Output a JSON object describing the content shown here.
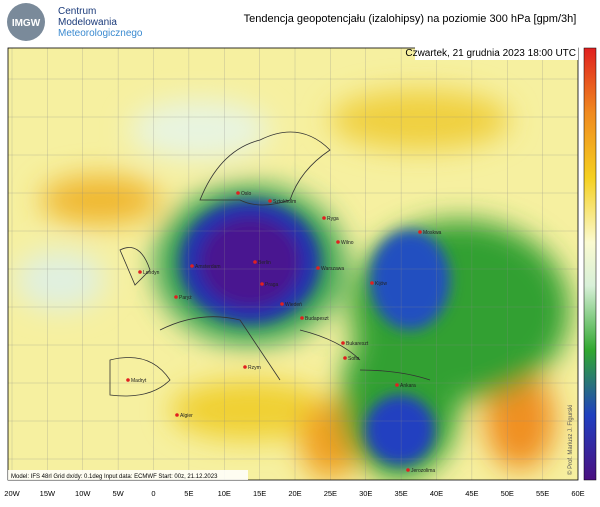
{
  "header": {
    "logo": "IMGW",
    "org": [
      "Centrum",
      "Modelowania",
      "Meteorologicznego"
    ],
    "title": "Tendencja geopotencjału (izalohipsy) na poziomie 300 hPa  [gpm/3h]"
  },
  "map": {
    "date": "Czwartek, 21 grudnia 2023 18:00 UTC",
    "cities": [
      "Oslo",
      "Sztokholm",
      "Ryga",
      "Wilno",
      "Moskwa",
      "Londyn",
      "Amsterdam",
      "Berlin",
      "Warszawa",
      "Paryż",
      "Praga",
      "Wiedeń",
      "Budapeszt",
      "Kijów",
      "Bukareszt",
      "Sofia",
      "Rzym",
      "Madryt",
      "Algier",
      "Ankara",
      "Jerozolima"
    ],
    "footer": "Model: IFS 48rl   Grid dx/dy: 0.1deg   Input data: ECMWF   Start: 00z, 21.12.2023",
    "credit": "© Prof. Mariusz J. Figurski",
    "x_labels": [
      "20W",
      "15W",
      "10W",
      "5W",
      "0",
      "5E",
      "10E",
      "15E",
      "20E",
      "25E",
      "30E",
      "35E",
      "40E",
      "45E",
      "50E",
      "55E",
      "60E"
    ]
  }
}
